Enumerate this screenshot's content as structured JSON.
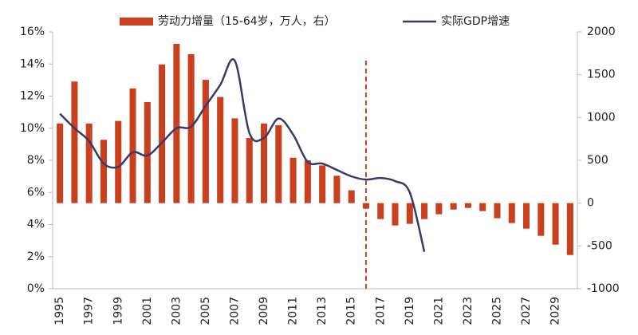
{
  "chart_data": {
    "type": "bar+line",
    "categories": [
      "1995",
      null,
      "1997",
      null,
      "1999",
      null,
      "2001",
      null,
      "2003",
      null,
      "2005",
      null,
      "2007",
      null,
      "2009",
      null,
      "2011",
      null,
      "2013",
      null,
      "2015",
      null,
      "2017",
      null,
      "2019",
      null,
      "2021",
      null,
      "2023",
      null,
      "2025",
      null,
      "2027",
      null,
      "2029",
      null
    ],
    "series": [
      {
        "name": "劳动力增量（15-64岁，万人，右）",
        "type": "bar",
        "axis": "y2",
        "color": "#c8401e",
        "values": [
          930,
          1420,
          930,
          740,
          960,
          1340,
          1180,
          1620,
          1860,
          1740,
          1440,
          1240,
          990,
          760,
          930,
          910,
          530,
          500,
          440,
          320,
          150,
          -65,
          -186,
          -261,
          -242,
          -186,
          -130,
          -75,
          -56,
          -93,
          -177,
          -233,
          -298,
          -382,
          -485,
          -606
        ]
      },
      {
        "name": "实际GDP增速",
        "type": "line",
        "axis": "y",
        "color": "#3a3a6a",
        "values": [
          10.9,
          10.0,
          9.2,
          7.8,
          7.6,
          8.5,
          8.3,
          9.1,
          10.0,
          10.1,
          11.4,
          12.7,
          14.2,
          9.7,
          9.4,
          10.6,
          9.6,
          7.9,
          7.8,
          7.4,
          7.0,
          6.8,
          6.9,
          6.7,
          6.0,
          2.3,
          null,
          null,
          null,
          null,
          null,
          null,
          null,
          null,
          null,
          null
        ]
      }
    ],
    "ylim": [
      0,
      16
    ],
    "yticks": [
      {
        "value": 0,
        "label": "0%"
      },
      {
        "value": 2,
        "label": "2%"
      },
      {
        "value": 4,
        "label": "4%"
      },
      {
        "value": 6,
        "label": "6%"
      },
      {
        "value": 8,
        "label": "8%"
      },
      {
        "value": 10,
        "label": "10%"
      },
      {
        "value": 12,
        "label": "12%"
      },
      {
        "value": 14,
        "label": "14%"
      },
      {
        "value": 16,
        "label": "16%"
      }
    ],
    "y2lim": [
      -1000,
      2000
    ],
    "y2ticks": [
      -1000,
      -500,
      0,
      500,
      1000,
      1500,
      2000
    ],
    "legend": "top"
  }
}
